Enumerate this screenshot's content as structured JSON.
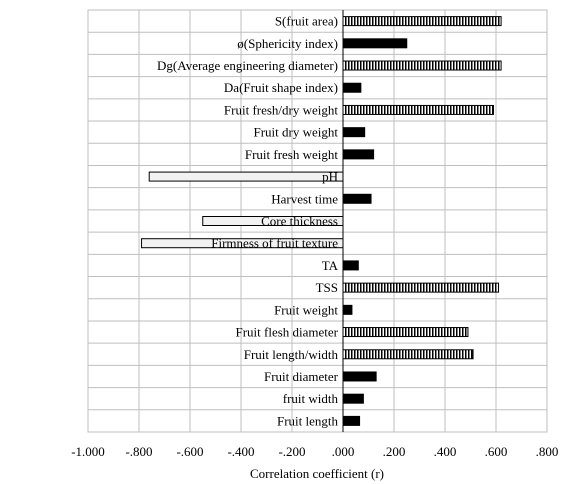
{
  "chart_data": {
    "type": "bar",
    "orientation": "horizontal",
    "categories": [
      "S(fruit area)",
      "ø(Sphericity index)",
      "Dg(Average engineering diameter)",
      "Da(Fruit shape index)",
      "Fruit fresh/dry weight",
      "Fruit dry weight",
      "Fruit fresh weight",
      "pH",
      "Harvest time",
      "Core thickness",
      "Firmness of fruit texture",
      "TA",
      "TSS",
      "Fruit weight",
      "Fruit flesh diameter",
      "Fruit length/width",
      "Fruit diameter",
      "fruit width",
      "Fruit length"
    ],
    "values": [
      0.62,
      0.25,
      0.62,
      0.07,
      0.59,
      0.085,
      0.12,
      -0.76,
      0.11,
      -0.55,
      -0.79,
      0.06,
      0.61,
      0.035,
      0.49,
      0.51,
      0.13,
      0.08,
      0.065
    ],
    "styles": [
      "striped",
      "solid",
      "striped",
      "solid",
      "striped",
      "solid",
      "solid",
      "light",
      "solid",
      "light",
      "light",
      "solid",
      "striped",
      "solid",
      "striped",
      "striped",
      "solid",
      "solid",
      "solid"
    ],
    "xlabel": "Correlation coefficient (r)",
    "ylabel": "",
    "xlim": [
      -1.0,
      0.8
    ],
    "xticks": [
      -1.0,
      -0.8,
      -0.6,
      -0.4,
      -0.2,
      0.0,
      0.2,
      0.4,
      0.6,
      0.8
    ],
    "xtick_labels": [
      "-1.000",
      "-.800",
      "-.600",
      "-.400",
      "-.200",
      ".000",
      ".200",
      ".400",
      ".600",
      ".800"
    ],
    "grid": true,
    "colors": {
      "solid": "#000000",
      "light": "#f2f2f2",
      "border": "#000000",
      "grid": "#bfbfbf"
    }
  }
}
